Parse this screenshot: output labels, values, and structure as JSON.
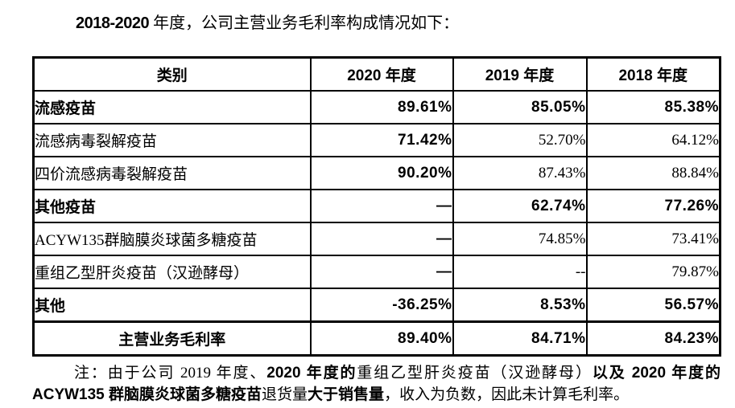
{
  "page": {
    "background_color": "#ffffff",
    "text_color": "#000000"
  },
  "title": {
    "year_range": "2018-2020",
    "text": " 年度，公司主营业务毛利率构成情况如下："
  },
  "table": {
    "headers": [
      "类别",
      "2020 年度",
      "2019 年度",
      "2018 年度"
    ],
    "rows": [
      {
        "label": "流感疫苗",
        "type": "group",
        "v2020": "89.61%",
        "v2019": "85.05%",
        "v2018": "85.38%"
      },
      {
        "label": "流感病毒裂解疫苗",
        "type": "sub",
        "v2020": "71.42%",
        "v2019": "52.70%",
        "v2018": "64.12%"
      },
      {
        "label": "四价流感病毒裂解疫苗",
        "type": "sub",
        "v2020": "90.20%",
        "v2019": "87.43%",
        "v2018": "88.84%"
      },
      {
        "label": "其他疫苗",
        "type": "group",
        "v2020": "—",
        "v2019": "62.74%",
        "v2018": "77.26%"
      },
      {
        "label": "ACYW135群脑膜炎球菌多糖疫苗",
        "type": "sub",
        "v2020": "—",
        "v2019": "74.85%",
        "v2018": "73.41%"
      },
      {
        "label": "重组乙型肝炎疫苗（汉逊酵母）",
        "type": "sub",
        "v2020": "—",
        "v2019": "--",
        "v2018": "79.87%"
      },
      {
        "label": "其他",
        "type": "group",
        "v2020": "-36.25%",
        "v2019": "8.53%",
        "v2018": "56.57%"
      },
      {
        "label": "主营业务毛利率",
        "type": "total",
        "v2020": "89.40%",
        "v2019": "84.71%",
        "v2018": "84.23%"
      }
    ]
  },
  "note": {
    "segments": [
      {
        "text": "注：由于公司 2019 年度、",
        "bold": false
      },
      {
        "text": "2020 年度的",
        "bold": true
      },
      {
        "text": "重组乙型肝炎疫苗（汉逊酵母）",
        "bold": false
      },
      {
        "text": "以及 2020 年度的 ACYW135 群脑膜炎球菌多糖疫苗",
        "bold": true
      },
      {
        "text": "退货量",
        "bold": false
      },
      {
        "text": "大于销售量",
        "bold": true
      },
      {
        "text": "，收入为负数，因此未计算毛利率。",
        "bold": false
      }
    ]
  }
}
